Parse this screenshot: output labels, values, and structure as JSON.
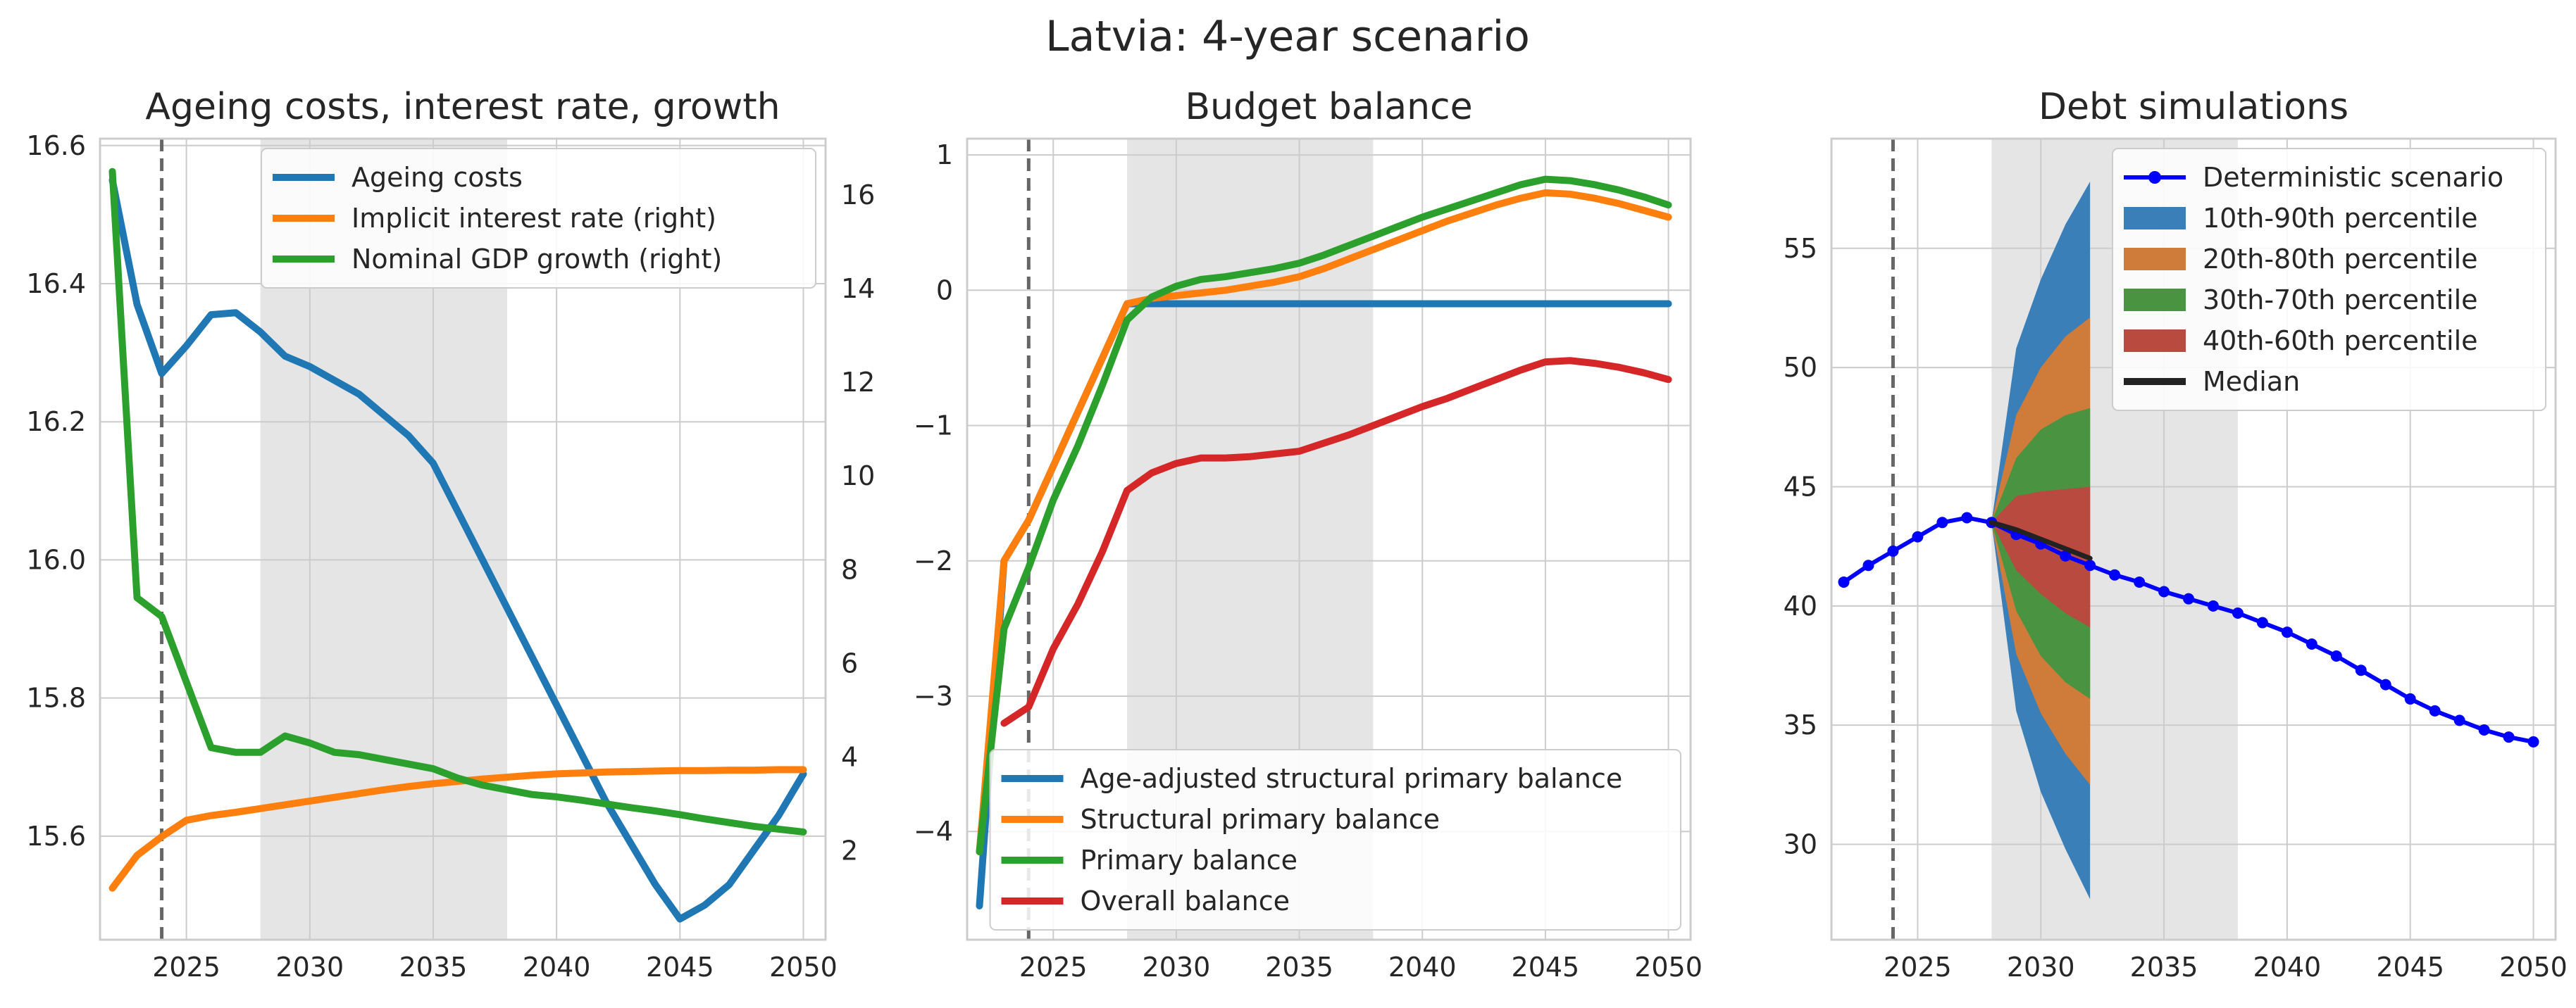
{
  "figure_title": "Latvia: 4-year scenario",
  "colors": {
    "blue": "#1f77b4",
    "orange": "#ff7f0e",
    "green": "#2ca02c",
    "red": "#d62728",
    "det": "#0000ff",
    "median": "#222222",
    "grid": "#cccccc",
    "shade": "#e5e5e5",
    "vline": "#666666"
  },
  "chart_data": [
    {
      "type": "line",
      "title": "Ageing costs, interest rate, growth",
      "xlim": [
        2021.5,
        2050.9
      ],
      "ylim": [
        15.45,
        16.61
      ],
      "y2lim": [
        0.1,
        17.2
      ],
      "x_ticks": [
        2025,
        2030,
        2035,
        2040,
        2045,
        2050
      ],
      "y_ticks": [
        "15.6",
        "15.8",
        "16.0",
        "16.2",
        "16.4",
        "16.6"
      ],
      "y2_ticks": [
        "2",
        "4",
        "6",
        "8",
        "10",
        "12",
        "14",
        "16"
      ],
      "shaded_x": [
        2028,
        2038
      ],
      "vline_x": 2024,
      "legend": "upper right",
      "series": [
        {
          "name": "Ageing costs",
          "axis": "left",
          "color": "#1f77b4",
          "x": [
            2022,
            2023,
            2024,
            2025,
            2026,
            2027,
            2028,
            2029,
            2030,
            2031,
            2032,
            2033,
            2034,
            2035,
            2036,
            2037,
            2038,
            2039,
            2040,
            2041,
            2042,
            2043,
            2044,
            2045,
            2046,
            2047,
            2048,
            2049,
            2050
          ],
          "y": [
            16.55,
            16.37,
            16.27,
            16.31,
            16.355,
            16.358,
            16.33,
            16.295,
            16.28,
            16.26,
            16.24,
            16.21,
            16.18,
            16.14,
            16.07,
            16.0,
            15.93,
            15.86,
            15.79,
            15.72,
            15.65,
            15.59,
            15.53,
            15.48,
            15.5,
            15.53,
            15.58,
            15.63,
            15.69
          ]
        },
        {
          "name": "Implicit interest rate (right)",
          "axis": "right",
          "color": "#ff7f0e",
          "x": [
            2022,
            2023,
            2024,
            2025,
            2026,
            2027,
            2028,
            2029,
            2030,
            2031,
            2032,
            2033,
            2034,
            2035,
            2036,
            2037,
            2038,
            2039,
            2040,
            2041,
            2042,
            2043,
            2044,
            2045,
            2046,
            2047,
            2048,
            2049,
            2050
          ],
          "y": [
            1.2,
            1.9,
            2.3,
            2.65,
            2.75,
            2.82,
            2.9,
            2.98,
            3.06,
            3.14,
            3.22,
            3.3,
            3.37,
            3.43,
            3.48,
            3.53,
            3.57,
            3.61,
            3.64,
            3.66,
            3.68,
            3.69,
            3.7,
            3.71,
            3.71,
            3.72,
            3.72,
            3.73,
            3.73
          ]
        },
        {
          "name": "Nominal GDP growth (right)",
          "axis": "right",
          "color": "#2ca02c",
          "x": [
            2022,
            2023,
            2024,
            2025,
            2026,
            2027,
            2028,
            2029,
            2030,
            2031,
            2032,
            2033,
            2034,
            2035,
            2036,
            2037,
            2038,
            2039,
            2040,
            2041,
            2042,
            2043,
            2044,
            2045,
            2046,
            2047,
            2048,
            2049,
            2050
          ],
          "y": [
            16.5,
            7.4,
            7.0,
            5.6,
            4.2,
            4.1,
            4.1,
            4.45,
            4.3,
            4.1,
            4.05,
            3.95,
            3.85,
            3.75,
            3.55,
            3.4,
            3.3,
            3.2,
            3.15,
            3.08,
            3.0,
            2.92,
            2.85,
            2.77,
            2.68,
            2.6,
            2.52,
            2.46,
            2.4
          ]
        }
      ]
    },
    {
      "type": "line",
      "title": "Budget balance",
      "xlim": [
        2021.5,
        2050.9
      ],
      "ylim": [
        -4.8,
        1.12
      ],
      "x_ticks": [
        2025,
        2030,
        2035,
        2040,
        2045,
        2050
      ],
      "y_ticks": [
        "−4",
        "−3",
        "−2",
        "−1",
        "0",
        "1"
      ],
      "shaded_x": [
        2028,
        2038
      ],
      "vline_x": 2024,
      "legend": "lower right",
      "series": [
        {
          "name": "Age-adjusted structural primary balance",
          "color": "#1f77b4",
          "x": [
            2022,
            2023,
            2024,
            2025,
            2026,
            2027,
            2028,
            2029,
            2030,
            2032,
            2035,
            2040,
            2045,
            2050
          ],
          "y": [
            -4.55,
            -2.0,
            -1.7,
            -1.3,
            -0.9,
            -0.5,
            -0.1,
            -0.1,
            -0.1,
            -0.1,
            -0.1,
            -0.1,
            -0.1,
            -0.1
          ]
        },
        {
          "name": "Structural primary balance",
          "color": "#ff7f0e",
          "x": [
            2022,
            2023,
            2024,
            2025,
            2026,
            2027,
            2028,
            2029,
            2030,
            2031,
            2032,
            2033,
            2034,
            2035,
            2036,
            2037,
            2038,
            2039,
            2040,
            2041,
            2042,
            2043,
            2044,
            2045,
            2046,
            2047,
            2048,
            2049,
            2050
          ],
          "y": [
            -4.15,
            -2.0,
            -1.7,
            -1.3,
            -0.9,
            -0.5,
            -0.1,
            -0.06,
            -0.04,
            -0.02,
            0.0,
            0.03,
            0.06,
            0.1,
            0.16,
            0.23,
            0.3,
            0.37,
            0.44,
            0.51,
            0.57,
            0.63,
            0.68,
            0.72,
            0.71,
            0.68,
            0.64,
            0.59,
            0.54
          ]
        },
        {
          "name": "Primary balance",
          "color": "#2ca02c",
          "x": [
            2022,
            2023,
            2024,
            2025,
            2026,
            2027,
            2028,
            2029,
            2030,
            2031,
            2032,
            2033,
            2034,
            2035,
            2036,
            2037,
            2038,
            2039,
            2040,
            2041,
            2042,
            2043,
            2044,
            2045,
            2046,
            2047,
            2048,
            2049,
            2050
          ],
          "y": [
            -4.15,
            -2.5,
            -2.05,
            -1.55,
            -1.15,
            -0.7,
            -0.22,
            -0.05,
            0.03,
            0.08,
            0.1,
            0.13,
            0.16,
            0.2,
            0.26,
            0.33,
            0.4,
            0.47,
            0.54,
            0.6,
            0.66,
            0.72,
            0.78,
            0.82,
            0.81,
            0.78,
            0.74,
            0.69,
            0.63
          ]
        },
        {
          "name": "Overall balance",
          "color": "#d62728",
          "x": [
            2023,
            2024,
            2025,
            2026,
            2027,
            2028,
            2029,
            2030,
            2031,
            2032,
            2033,
            2034,
            2035,
            2036,
            2037,
            2038,
            2039,
            2040,
            2041,
            2042,
            2043,
            2044,
            2045,
            2046,
            2047,
            2048,
            2049,
            2050
          ],
          "y": [
            -3.2,
            -3.08,
            -2.65,
            -2.32,
            -1.93,
            -1.48,
            -1.35,
            -1.28,
            -1.24,
            -1.24,
            -1.23,
            -1.21,
            -1.19,
            -1.13,
            -1.07,
            -1.0,
            -0.93,
            -0.86,
            -0.8,
            -0.73,
            -0.66,
            -0.59,
            -0.53,
            -0.52,
            -0.54,
            -0.57,
            -0.61,
            -0.66
          ]
        }
      ]
    },
    {
      "type": "line",
      "title": "Debt simulations",
      "xlim": [
        2021.5,
        2050.9
      ],
      "ylim": [
        26,
        59.6
      ],
      "x_ticks": [
        2025,
        2030,
        2035,
        2040,
        2045,
        2050
      ],
      "y_ticks": [
        "30",
        "35",
        "40",
        "45",
        "50",
        "55"
      ],
      "shaded_x": [
        2028,
        2038
      ],
      "vline_x": 2024,
      "legend": "upper right",
      "fan_x": [
        2028,
        2029,
        2030,
        2031,
        2032
      ],
      "fans": [
        {
          "name": "10th-90th percentile",
          "color": "#3a7fb8",
          "upper": [
            43.5,
            50.8,
            53.7,
            56.0,
            57.8
          ],
          "lower": [
            43.5,
            35.6,
            32.2,
            29.8,
            27.7
          ]
        },
        {
          "name": "20th-80th percentile",
          "color": "#cf7c3a",
          "upper": [
            43.5,
            48.0,
            50.0,
            51.3,
            52.1
          ],
          "lower": [
            43.5,
            38.0,
            35.5,
            33.8,
            32.5
          ]
        },
        {
          "name": "30th-70th percentile",
          "color": "#4a9340",
          "upper": [
            43.5,
            46.2,
            47.4,
            48.0,
            48.3
          ],
          "lower": [
            43.5,
            39.8,
            37.9,
            36.8,
            36.1
          ]
        },
        {
          "name": "40th-60th percentile",
          "color": "#b84a3f",
          "upper": [
            43.5,
            44.6,
            44.8,
            44.9,
            45.0
          ],
          "lower": [
            43.5,
            41.5,
            40.5,
            39.7,
            39.1
          ]
        }
      ],
      "series": [
        {
          "name": "Deterministic scenario",
          "color": "#0000ff",
          "markers": true,
          "x": [
            2022,
            2023,
            2024,
            2025,
            2026,
            2027,
            2028,
            2029,
            2030,
            2031,
            2032,
            2033,
            2034,
            2035,
            2036,
            2037,
            2038,
            2039,
            2040,
            2041,
            2042,
            2043,
            2044,
            2045,
            2046,
            2047,
            2048,
            2049,
            2050
          ],
          "y": [
            41.0,
            41.7,
            42.3,
            42.9,
            43.5,
            43.7,
            43.5,
            43.0,
            42.6,
            42.1,
            41.7,
            41.3,
            41.0,
            40.6,
            40.3,
            40.0,
            39.7,
            39.3,
            38.9,
            38.4,
            37.9,
            37.3,
            36.7,
            36.1,
            35.6,
            35.2,
            34.8,
            34.5,
            34.3
          ]
        },
        {
          "name": "Median",
          "color": "#222222",
          "x": [
            2028,
            2029,
            2030,
            2031,
            2032
          ],
          "y": [
            43.5,
            43.2,
            42.8,
            42.4,
            42.0
          ]
        }
      ]
    }
  ]
}
